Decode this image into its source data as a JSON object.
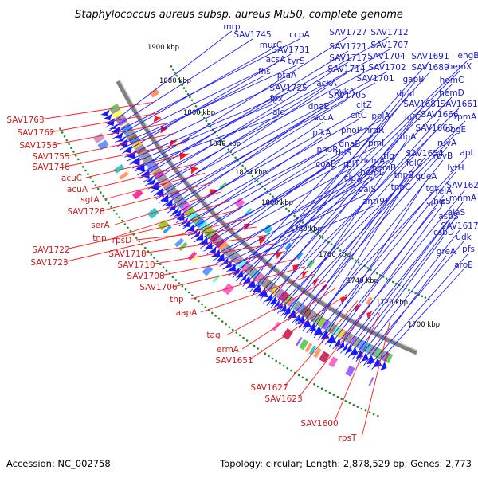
{
  "title": "Staphylococcus aureus subsp. aureus Mu50, complete genome",
  "footer": {
    "accession": "Accession: NC_002758",
    "summary": "Topology: circular; Length: 2,878,529 bp; Genes: 2,773"
  },
  "colors": {
    "forward_strand": "#1a1aff",
    "reverse_strand": "#ff1a1a",
    "forward_label": "#1a1acc",
    "reverse_label": "#cc1a1a",
    "backbone": "#808080",
    "gc_dots": "#228b22"
  },
  "kbp_ticks": [
    "1900 kbp",
    "1880 kbp",
    "1860 kbp",
    "1840 kbp",
    "1820 kbp",
    "1800 kbp",
    "1780 kbp",
    "1760 kbp",
    "1740 kbp",
    "1720 kbp",
    "1700 kbp"
  ],
  "forward_genes": [
    "mrp",
    "SAV1745",
    "ccpA",
    "murC",
    "acsA",
    "tyrS",
    "fhs",
    "SAV1731",
    "ptaA",
    "SAV1725",
    "fpx",
    "ald",
    "SAV1727",
    "SAV1712",
    "SAV1721",
    "SAV1707",
    "SAV1717",
    "SAV1704",
    "SAV1714",
    "SAV1702",
    "ackA",
    "SAV1701",
    "pykA",
    "SAV1705",
    "dnaE",
    "citZ",
    "accA",
    "citC",
    "polA",
    "pfkA",
    "phoP",
    "nrdR",
    "phoR",
    "rpmI",
    "rhlS",
    "coaE",
    "rplT",
    "dnaB",
    "clpX",
    "hemA",
    "hemL",
    "valS",
    "ant(9)",
    "tig",
    "hemB",
    "SAV1691",
    "engB",
    "SAV1689",
    "hemX",
    "gapB",
    "hemC",
    "dnaI",
    "hemD",
    "SAV1681",
    "SAV1661",
    "infC",
    "SAV1666",
    "rpmA",
    "SAV1665",
    "obgE",
    "tnpA",
    "folC",
    "ruvA",
    "tnpB",
    "SAV1654",
    "apt",
    "ruvB",
    "tnpC",
    "tgt",
    "lytH",
    "queA",
    "secF",
    "relA",
    "SAV1628",
    "hisS",
    "mnmA",
    "aspS",
    "alaS",
    "csbD",
    "SAV1617",
    "udk",
    "greA",
    "pfs",
    "aroE"
  ],
  "reverse_genes": [
    "SAV1763",
    "SAV1762",
    "SAV1756",
    "SAV1755",
    "SAV1746",
    "acuC",
    "acuA",
    "sgtA",
    "SAV1728",
    "serA",
    "tnp",
    "SAV1722",
    "SAV1723",
    "rpsD",
    "SAV1718",
    "SAV1710",
    "SAV1708",
    "SAV1706",
    "tnp",
    "aapA",
    "tag",
    "ermA",
    "SAV1651",
    "SAV1627",
    "SAV1623",
    "SAV1600",
    "rpsT"
  ]
}
